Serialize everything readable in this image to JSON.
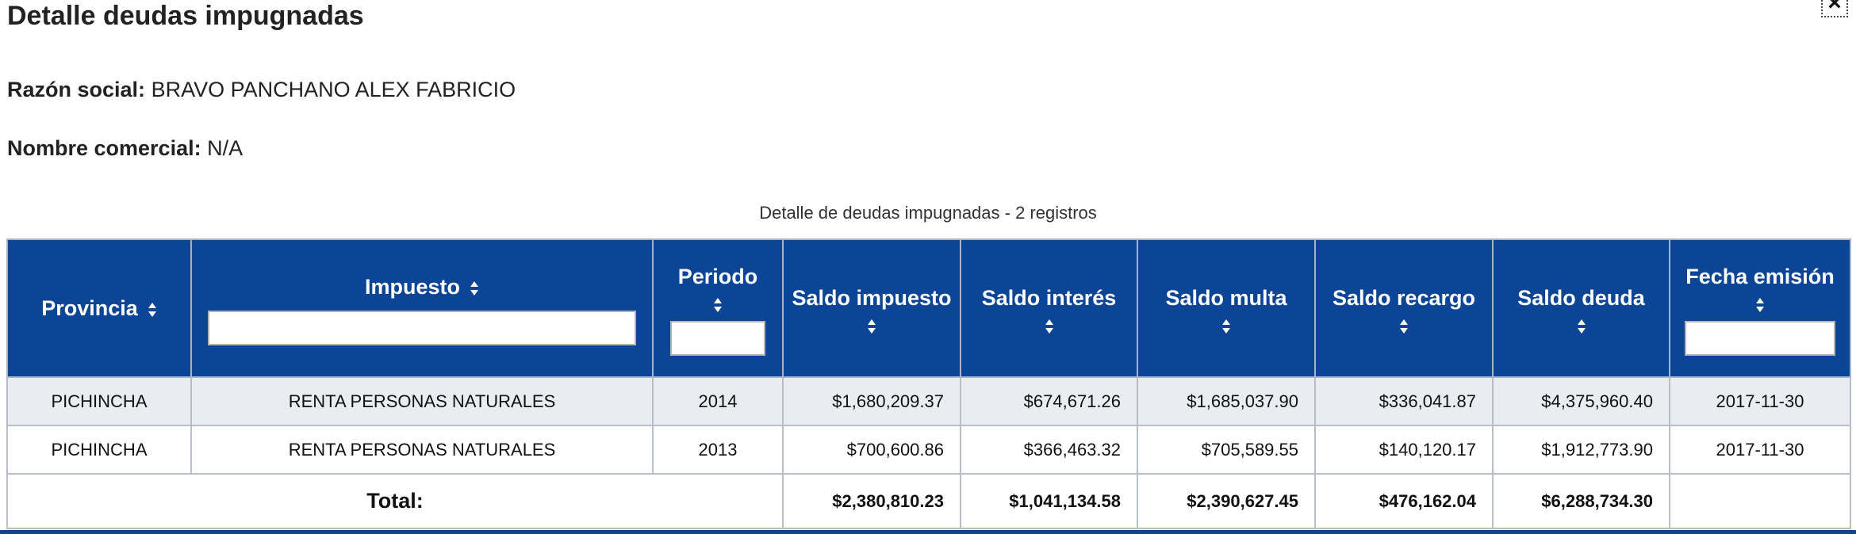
{
  "modal": {
    "title": "Detalle deudas impugnadas",
    "close_label": "×"
  },
  "info": {
    "razon_label": "Razón social:",
    "razon_value": "BRAVO PANCHANO ALEX FABRICIO",
    "nombre_label": "Nombre comercial:",
    "nombre_value": "N/A"
  },
  "table": {
    "caption": "Detalle de deudas impugnadas - 2 registros",
    "headers": {
      "provincia": "Provincia",
      "impuesto": "Impuesto",
      "periodo": "Periodo",
      "saldo_impuesto": "Saldo impuesto",
      "saldo_interes": "Saldo interés",
      "saldo_multa": "Saldo multa",
      "saldo_recargo": "Saldo recargo",
      "saldo_deuda": "Saldo deuda",
      "fecha_emision": "Fecha emisión"
    },
    "filters": {
      "impuesto": "",
      "periodo": "",
      "fecha_emision": ""
    },
    "rows": [
      {
        "provincia": "PICHINCHA",
        "impuesto": "RENTA PERSONAS NATURALES",
        "periodo": "2014",
        "saldo_impuesto": "$1,680,209.37",
        "saldo_interes": "$674,671.26",
        "saldo_multa": "$1,685,037.90",
        "saldo_recargo": "$336,041.87",
        "saldo_deuda": "$4,375,960.40",
        "fecha_emision": "2017-11-30"
      },
      {
        "provincia": "PICHINCHA",
        "impuesto": "RENTA PERSONAS NATURALES",
        "periodo": "2013",
        "saldo_impuesto": "$700,600.86",
        "saldo_interes": "$366,463.32",
        "saldo_multa": "$705,589.55",
        "saldo_recargo": "$140,120.17",
        "saldo_deuda": "$1,912,773.90",
        "fecha_emision": "2017-11-30"
      }
    ],
    "total": {
      "label": "Total:",
      "saldo_impuesto": "$2,380,810.23",
      "saldo_interes": "$1,041,134.58",
      "saldo_multa": "$2,390,627.45",
      "saldo_recargo": "$476,162.04",
      "saldo_deuda": "$6,288,734.30"
    }
  },
  "colors": {
    "header_bg": "#0d4596",
    "header_text": "#ffffff",
    "odd_row_bg": "#e9ecf0"
  }
}
